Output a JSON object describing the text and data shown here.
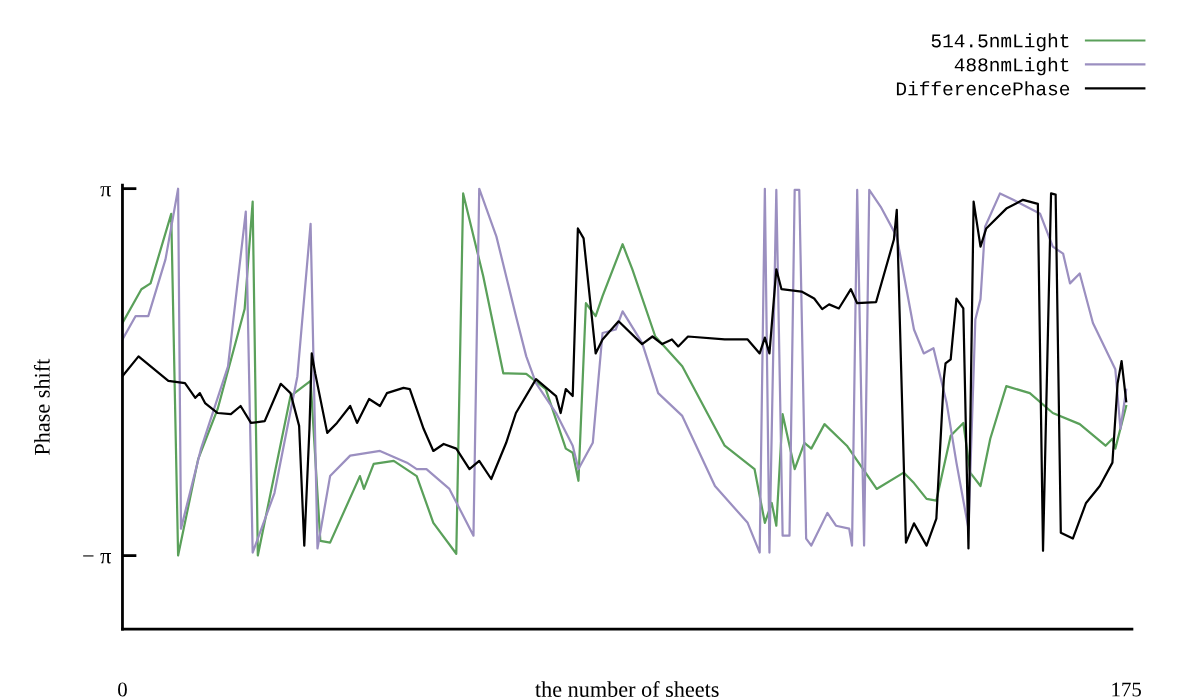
{
  "chart_data": {
    "type": "line",
    "xlabel": "the number of sheets",
    "ylabel": "Phase shift",
    "xlim": [
      0,
      176
    ],
    "xticks": [
      0,
      175
    ],
    "ylim": [
      -4.4,
      3.2
    ],
    "yticks": [
      {
        "value": 3.1416,
        "label": "π"
      },
      {
        "value": -3.1416,
        "label": "− π"
      }
    ],
    "grid": false,
    "legend": "top right",
    "marker": "none",
    "line_style": "solid",
    "series": [
      {
        "name": "514.5nmLight",
        "color": "#5aa05a",
        "x": [
          0,
          3.3,
          4.9,
          8.5,
          9.7,
          13.2,
          16.6,
          21.3,
          22.7,
          23.6,
          29.3,
          32.8,
          34.5,
          36.2,
          41.4,
          42.1,
          43.8,
          47.3,
          51.3,
          54.2,
          58.2,
          59.4,
          62.9,
          66.4,
          70.4,
          73.8,
          77.3,
          78.5,
          79.5,
          80.8,
          82.5,
          83.7,
          87.2,
          88.9,
          92.9,
          97.6,
          105,
          110.2,
          112,
          113.2,
          114,
          115.1,
          117.2,
          118.9,
          120.1,
          122.4,
          126.3,
          131.5,
          136.2,
          138,
          140.2,
          141.9,
          144.4,
          146.6,
          147.8,
          149.6,
          151.3,
          154.1,
          158.2,
          162.2,
          166.9,
          171.4,
          172.6,
          173.1,
          175
        ],
        "values": [
          0.84,
          1.42,
          1.52,
          2.71,
          -3.14,
          -1.49,
          -0.63,
          1.08,
          2.92,
          -3.14,
          -0.41,
          -0.15,
          -2.89,
          -2.92,
          -1.78,
          -2.0,
          -1.57,
          -1.52,
          -1.78,
          -2.58,
          -3.11,
          3.06,
          1.64,
          -0.02,
          -0.03,
          -0.29,
          -1.31,
          -1.38,
          -1.86,
          1.18,
          0.96,
          1.3,
          2.19,
          1.76,
          0.61,
          0.1,
          -1.26,
          -1.66,
          -2.58,
          -2.24,
          -2.63,
          -0.72,
          -1.66,
          -1.21,
          -1.31,
          -0.89,
          -1.26,
          -2.0,
          -1.72,
          -1.9,
          -2.17,
          -2.2,
          -1.09,
          -0.87,
          -1.72,
          -1.95,
          -1.14,
          -0.24,
          -0.36,
          -0.7,
          -0.89,
          -1.26,
          -1.14,
          -1.31,
          -0.58
        ]
      },
      {
        "name": "488nmLight",
        "color": "#9b8fc0",
        "x": [
          0,
          2.3,
          4.5,
          7.5,
          9.7,
          10.2,
          13.7,
          18.4,
          21.5,
          22.7,
          26.5,
          30.5,
          32.8,
          34,
          36.2,
          39.7,
          44.9,
          49.6,
          51.3,
          53,
          57,
          61.2,
          62.2,
          65.2,
          68.6,
          70.4,
          72.1,
          75.6,
          78.5,
          79.5,
          82,
          83.7,
          86,
          87.2,
          90.6,
          93.4,
          97.6,
          103.3,
          109,
          111.1,
          112,
          112.8,
          114,
          115.1,
          116.3,
          117.2,
          118,
          119.2,
          120.1,
          122.9,
          124.4,
          126.7,
          127.2,
          128.1,
          129.3,
          130.2,
          132.2,
          135,
          138,
          139.7,
          141.4,
          143.7,
          145.4,
          147.5,
          148.7,
          149.6,
          150.4,
          153,
          155.3,
          160,
          162.2,
          164,
          165.2,
          166.9,
          169.2,
          173.1,
          174,
          175
        ],
        "values": [
          0.56,
          0.96,
          0.96,
          1.93,
          3.14,
          -2.68,
          -1.31,
          0.1,
          2.75,
          -3.09,
          -2.07,
          -0.07,
          2.54,
          -3.02,
          -1.78,
          -1.43,
          -1.35,
          -1.55,
          -1.66,
          -1.66,
          -2.0,
          -2.8,
          3.14,
          2.32,
          0.96,
          0.27,
          -0.19,
          -0.7,
          -1.26,
          -1.66,
          -1.21,
          0.67,
          0.73,
          1.04,
          0.5,
          -0.36,
          -0.75,
          -1.95,
          -2.58,
          -3.09,
          3.14,
          -3.09,
          3.12,
          -2.8,
          -2.8,
          3.12,
          3.12,
          -2.85,
          -2.97,
          -2.41,
          -2.63,
          -2.68,
          -2.97,
          3.12,
          -2.97,
          3.12,
          2.83,
          2.32,
          0.73,
          0.32,
          0.41,
          -0.53,
          -1.55,
          -2.68,
          0.9,
          1.25,
          2.49,
          3.06,
          2.95,
          2.71,
          2.15,
          2.03,
          1.52,
          1.69,
          0.84,
          0.05,
          -0.97,
          -0.3
        ]
      },
      {
        "name": "DifferencePhase",
        "color": "#000000",
        "x": [
          0,
          2.8,
          8,
          10.9,
          12.7,
          13.5,
          14.4,
          16.6,
          18.9,
          20.6,
          22.4,
          24.8,
          27.6,
          29.3,
          30.8,
          31.7,
          32.6,
          33,
          33.6,
          35.7,
          37.4,
          39.7,
          40.9,
          43,
          44.9,
          46.1,
          49,
          50.1,
          52.5,
          54.2,
          56,
          58.2,
          60.5,
          62.2,
          64.3,
          66.9,
          68.6,
          72.1,
          75.6,
          76.4,
          77.3,
          78.5,
          79.4,
          80.4,
          82.5,
          83.7,
          86.5,
          90.6,
          92.4,
          94.1,
          95.8,
          96.9,
          98.6,
          105,
          109,
          111.1,
          112,
          112.8,
          114,
          114.9,
          118.4,
          120.6,
          122,
          123.2,
          124.9,
          127,
          128.1,
          131.4,
          134.5,
          135,
          136.6,
          138,
          140.2,
          141.9,
          143.2,
          143.5,
          144.4,
          145.4,
          146.6,
          147.5,
          148.4,
          149.6,
          150.6,
          154.1,
          157,
          159.6,
          160.5,
          161.9,
          162.7,
          163.6,
          165.7,
          168,
          170.4,
          172.6,
          173.5,
          174.2,
          175
        ],
        "values": [
          -0.07,
          0.27,
          -0.15,
          -0.19,
          -0.44,
          -0.36,
          -0.53,
          -0.7,
          -0.72,
          -0.58,
          -0.87,
          -0.84,
          -0.2,
          -0.36,
          -0.92,
          -2.97,
          -0.97,
          0.32,
          -0.02,
          -1.04,
          -0.87,
          -0.58,
          -0.87,
          -0.46,
          -0.58,
          -0.36,
          -0.27,
          -0.29,
          -0.97,
          -1.35,
          -1.23,
          -1.31,
          -1.66,
          -1.52,
          -1.83,
          -1.21,
          -0.7,
          -0.12,
          -0.41,
          -0.7,
          -0.29,
          -0.41,
          2.46,
          2.29,
          0.32,
          0.56,
          0.87,
          0.48,
          0.61,
          0.48,
          0.56,
          0.44,
          0.61,
          0.56,
          0.56,
          0.32,
          0.59,
          0.32,
          1.76,
          1.42,
          1.38,
          1.26,
          1.08,
          1.16,
          1.09,
          1.42,
          1.18,
          1.2,
          2.27,
          2.78,
          -2.92,
          -2.59,
          -2.97,
          -2.51,
          -0.12,
          0.15,
          0.22,
          1.26,
          1.09,
          -3.02,
          2.92,
          2.15,
          2.46,
          2.8,
          2.95,
          2.88,
          -3.06,
          3.06,
          3.04,
          -2.75,
          -2.85,
          -2.24,
          -1.95,
          -1.55,
          -0.19,
          0.19,
          -0.5
        ]
      }
    ]
  }
}
